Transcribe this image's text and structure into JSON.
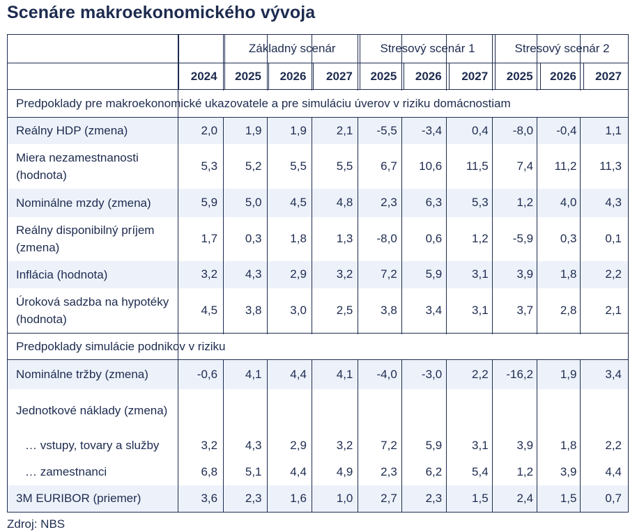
{
  "title": "Scenáre makroekonomického vývoja",
  "header": {
    "groups": [
      "Základný scenár",
      "Stresový scenár 1",
      "Stresový scenár 2"
    ],
    "years": [
      "2024",
      "2025",
      "2026",
      "2027",
      "2025",
      "2026",
      "2027",
      "2025",
      "2026",
      "2027"
    ]
  },
  "sections": [
    {
      "title": "Predpoklady pre makroekonomické ukazovatele a pre simuláciu úverov v riziku domácnostiam",
      "rows": [
        {
          "label": "Reálny HDP (zmena)",
          "values": [
            "2,0",
            "1,9",
            "1,9",
            "2,1",
            "-5,5",
            "-3,4",
            "0,4",
            "-8,0",
            "-0,4",
            "1,1"
          ]
        },
        {
          "label": "Miera nezamestnanosti (hodnota)",
          "values": [
            "5,3",
            "5,2",
            "5,5",
            "5,5",
            "6,7",
            "10,6",
            "11,5",
            "7,4",
            "11,2",
            "11,3"
          ]
        },
        {
          "label": "Nominálne mzdy (zmena)",
          "values": [
            "5,9",
            "5,0",
            "4,5",
            "4,8",
            "2,3",
            "6,3",
            "5,3",
            "1,2",
            "4,0",
            "4,3"
          ]
        },
        {
          "label": "Reálny disponibilný príjem (zmena)",
          "values": [
            "1,7",
            "0,3",
            "1,8",
            "1,3",
            "-8,0",
            "0,6",
            "1,2",
            "-5,9",
            "0,3",
            "0,1"
          ]
        },
        {
          "label": "Inflácia (hodnota)",
          "values": [
            "3,2",
            "4,3",
            "2,9",
            "3,2",
            "7,2",
            "5,9",
            "3,1",
            "3,9",
            "1,8",
            "2,2"
          ]
        },
        {
          "label": "Úroková sadzba na hypotéky (hodnota)",
          "values": [
            "4,5",
            "3,8",
            "3,0",
            "2,5",
            "3,8",
            "3,4",
            "3,1",
            "3,7",
            "2,8",
            "2,1"
          ]
        }
      ]
    },
    {
      "title": "Predpoklady simulácie podnikov v riziku",
      "rows": [
        {
          "label": "Nominálne tržby (zmena)",
          "values": [
            "-0,6",
            "4,1",
            "4,4",
            "4,1",
            "-4,0",
            "-3,0",
            "2,2",
            "-16,2",
            "1,9",
            "3,4"
          ]
        },
        {
          "label": "Jednotkové náklady (zmena)",
          "values": [
            "",
            "",
            "",
            "",
            "",
            "",
            "",
            "",
            "",
            ""
          ]
        },
        {
          "label": "… vstupy, tovary a služby",
          "values": [
            "3,2",
            "4,3",
            "2,9",
            "3,2",
            "7,2",
            "5,9",
            "3,1",
            "3,9",
            "1,8",
            "2,2"
          ]
        },
        {
          "label": "… zamestnanci",
          "values": [
            "6,8",
            "5,1",
            "4,4",
            "4,9",
            "2,3",
            "6,2",
            "5,4",
            "1,2",
            "3,9",
            "4,4"
          ]
        },
        {
          "label": "3M EURIBOR (priemer)",
          "values": [
            "3,6",
            "2,3",
            "1,6",
            "1,0",
            "2,7",
            "2,3",
            "1,5",
            "2,4",
            "1,5",
            "0,7"
          ]
        }
      ]
    }
  ],
  "source": "Zdroj: NBS"
}
